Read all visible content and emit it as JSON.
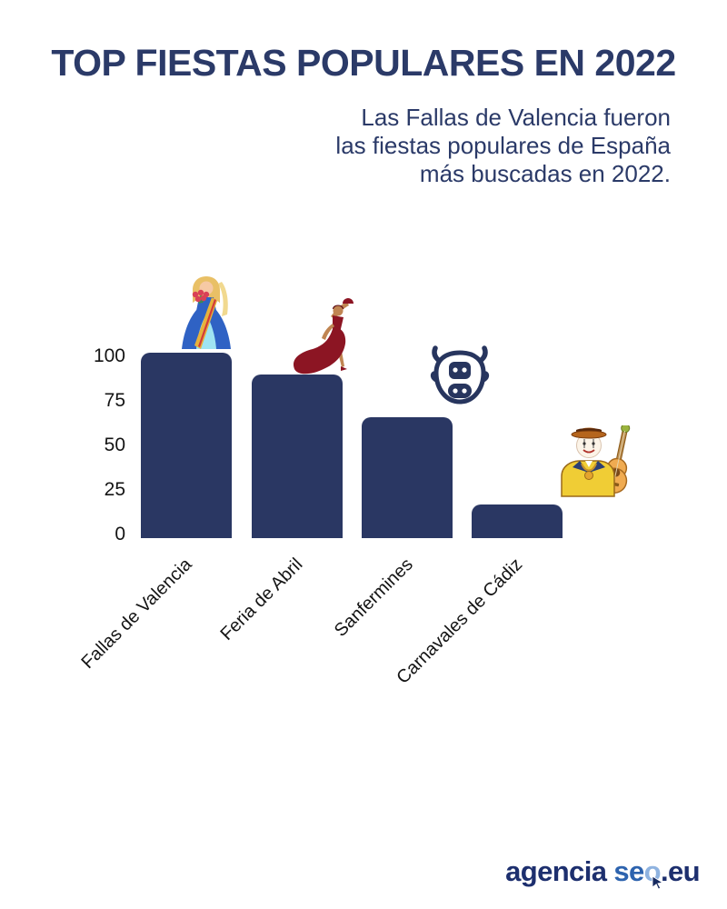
{
  "header": {
    "title": "TOP FIESTAS POPULARES EN 2022",
    "subtitle_lines": [
      "Las Fallas de Valencia fueron",
      "las fiestas populares de España",
      "más buscadas en 2022."
    ]
  },
  "colors": {
    "accent_navy": "#2b3a68",
    "bar": "#2a3763",
    "axis_text": "#141414",
    "logo_dark": "#1d2f6e",
    "logo_blue": "#2d63ae",
    "logo_light_blue": "#8fb3e0"
  },
  "chart_data": {
    "type": "bar",
    "title": "TOP FIESTAS POPULARES EN 2022",
    "categories": [
      "Fallas de Valencia",
      "Feria de Abril",
      "Sanfermines",
      "Carnavales de Cádiz"
    ],
    "values": [
      100,
      88,
      65,
      18
    ],
    "xlabel": "",
    "ylabel": "",
    "ylim": [
      0,
      100
    ],
    "y_ticks": [
      100,
      75,
      50,
      25,
      0
    ],
    "grid": false,
    "legend": false,
    "bar_color": "#2a3763",
    "category_icons": [
      "fallera-icon",
      "flamenco-dancer-icon",
      "bull-icon",
      "carnival-singer-guitar-icon"
    ]
  },
  "footer": {
    "logo": {
      "part_agencia": "agencia",
      "part_se": "se",
      "part_o": "o",
      "part_eu": ".eu"
    }
  }
}
